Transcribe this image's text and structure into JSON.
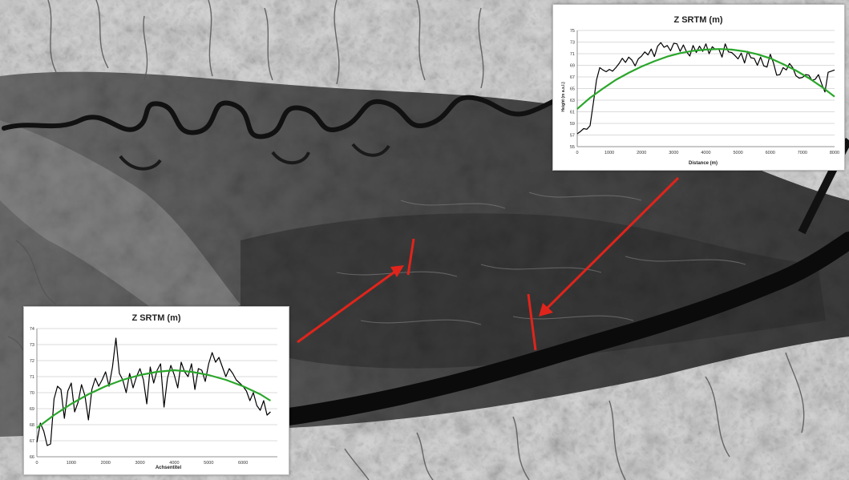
{
  "map": {
    "arrow_color": "#e0241b",
    "profile_line_color": "#e0241b"
  },
  "charts": {
    "right": {
      "title": "Z SRTM (m)",
      "xlabel": "Distance (m)",
      "ylabel": "Height (m a.s.l.)"
    },
    "left": {
      "title": "Z SRTM (m)",
      "xlabel": "Achsentitel",
      "ylabel": ""
    }
  },
  "chart_data": [
    {
      "type": "line",
      "title": "Z SRTM (m)",
      "xlabel": "Distance (m)",
      "ylabel": "Height (m a.s.l.)",
      "xlim": [
        0,
        8000
      ],
      "ylim": [
        55,
        75
      ],
      "xticks": [
        0,
        1000,
        2000,
        3000,
        4000,
        5000,
        6000,
        7000,
        8000
      ],
      "yticks": [
        55,
        57,
        59,
        61,
        63,
        65,
        67,
        69,
        71,
        73,
        75
      ],
      "grid": true,
      "series": [
        {
          "color": "#000000",
          "x": [
            0,
            100,
            200,
            300,
            400,
            500,
            600,
            700,
            800,
            900,
            1000,
            1100,
            1200,
            1300,
            1400,
            1500,
            1600,
            1700,
            1800,
            1900,
            2000,
            2100,
            2200,
            2300,
            2400,
            2500,
            2600,
            2700,
            2800,
            2900,
            3000,
            3100,
            3200,
            3300,
            3400,
            3500,
            3600,
            3700,
            3800,
            3900,
            4000,
            4100,
            4200,
            4300,
            4400,
            4500,
            4600,
            4700,
            4800,
            4900,
            5000,
            5100,
            5200,
            5300,
            5400,
            5500,
            5600,
            5700,
            5800,
            5900,
            6000,
            6100,
            6200,
            6300,
            6400,
            6500,
            6600,
            6700,
            6800,
            6900,
            7000,
            7100,
            7200,
            7300,
            7400,
            7500,
            7600,
            7700,
            7800,
            7900,
            8000
          ],
          "values": [
            57.2,
            57.6,
            58.1,
            58.0,
            58.6,
            62.5,
            66.5,
            68.6,
            68.2,
            67.9,
            68.3,
            68.0,
            68.6,
            69.3,
            70.2,
            69.5,
            70.4,
            69.9,
            68.9,
            70.1,
            70.6,
            71.3,
            70.8,
            71.8,
            70.5,
            72.3,
            72.9,
            72.1,
            72.4,
            71.5,
            72.8,
            72.7,
            71.4,
            72.5,
            71.3,
            70.6,
            72.4,
            71.2,
            72.3,
            71.4,
            72.7,
            71.0,
            72.2,
            71.7,
            71.8,
            70.4,
            72.7,
            71.3,
            71.2,
            70.7,
            70.1,
            71.1,
            69.4,
            71.4,
            70.3,
            70.2,
            69.0,
            70.4,
            68.9,
            68.7,
            70.9,
            69.4,
            67.3,
            67.4,
            68.6,
            68.2,
            69.3,
            68.6,
            67.2,
            66.8,
            66.9,
            67.4,
            67.3,
            66.4,
            66.6,
            67.4,
            65.8,
            64.4,
            67.8,
            68.0,
            68.2
          ]
        },
        {
          "color": "#2aa62a",
          "x": [
            0,
            400,
            800,
            1200,
            1600,
            2000,
            2400,
            2800,
            3200,
            3600,
            4000,
            4400,
            4800,
            5200,
            5600,
            6000,
            6400,
            6800,
            7200,
            7600,
            8000
          ],
          "values": [
            61.5,
            63.4,
            65.0,
            66.5,
            67.7,
            68.8,
            69.7,
            70.5,
            71.1,
            71.5,
            71.7,
            71.8,
            71.7,
            71.4,
            70.9,
            70.2,
            69.2,
            68.1,
            66.8,
            65.3,
            63.6
          ]
        }
      ]
    },
    {
      "type": "line",
      "title": "Z SRTM (m)",
      "xlabel": "Achsentitel",
      "ylabel": "",
      "xlim": [
        0,
        7000
      ],
      "ylim": [
        66,
        74
      ],
      "xticks": [
        0,
        1000,
        2000,
        3000,
        4000,
        5000,
        6000
      ],
      "yticks": [
        66,
        67,
        68,
        69,
        70,
        71,
        72,
        73,
        74
      ],
      "grid": true,
      "series": [
        {
          "color": "#000000",
          "x": [
            0,
            100,
            200,
            300,
            400,
            500,
            600,
            700,
            800,
            900,
            1000,
            1100,
            1200,
            1300,
            1400,
            1500,
            1600,
            1700,
            1800,
            1900,
            2000,
            2100,
            2200,
            2300,
            2400,
            2500,
            2600,
            2700,
            2800,
            2900,
            3000,
            3100,
            3200,
            3300,
            3400,
            3500,
            3600,
            3700,
            3800,
            3900,
            4000,
            4100,
            4200,
            4300,
            4400,
            4500,
            4600,
            4700,
            4800,
            4900,
            5000,
            5100,
            5200,
            5300,
            5400,
            5500,
            5600,
            5700,
            5800,
            5900,
            6000,
            6100,
            6200,
            6300,
            6400,
            6500,
            6600,
            6700,
            6800
          ],
          "values": [
            66.9,
            68.1,
            67.6,
            66.7,
            66.8,
            69.6,
            70.4,
            70.2,
            68.4,
            70.1,
            70.6,
            68.8,
            69.4,
            70.5,
            69.8,
            68.3,
            70.2,
            70.9,
            70.4,
            70.8,
            71.3,
            70.4,
            71.6,
            73.4,
            71.2,
            70.8,
            70.0,
            71.2,
            70.3,
            71.0,
            71.5,
            70.8,
            69.3,
            71.6,
            70.6,
            71.4,
            71.8,
            69.1,
            70.9,
            71.7,
            71.1,
            70.3,
            71.9,
            71.3,
            71.0,
            71.8,
            70.2,
            71.5,
            71.4,
            70.7,
            71.8,
            72.5,
            71.9,
            72.2,
            71.6,
            71.0,
            71.5,
            71.2,
            70.8,
            70.6,
            70.4,
            70.1,
            69.5,
            70.0,
            69.2,
            68.9,
            69.5,
            68.6,
            68.8
          ]
        },
        {
          "color": "#2aa62a",
          "x": [
            0,
            500,
            1000,
            1500,
            2000,
            2500,
            3000,
            3500,
            4000,
            4500,
            5000,
            5500,
            6000,
            6500,
            6800
          ],
          "values": [
            67.8,
            68.6,
            69.3,
            69.9,
            70.4,
            70.8,
            71.1,
            71.3,
            71.4,
            71.3,
            71.1,
            70.8,
            70.4,
            69.9,
            69.5
          ]
        }
      ]
    }
  ]
}
